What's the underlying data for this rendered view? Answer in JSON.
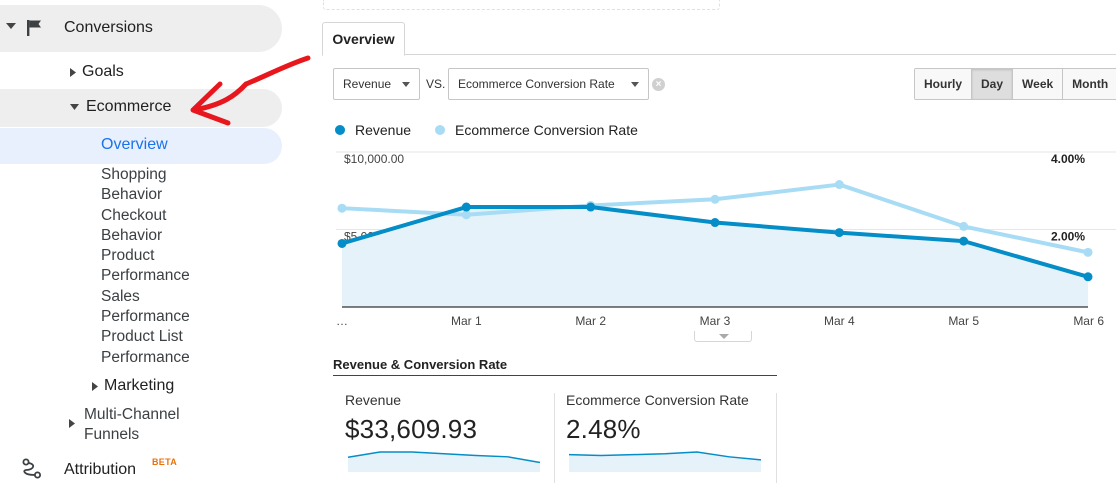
{
  "sidebar": {
    "conversions_label": "Conversions",
    "goals_label": "Goals",
    "ecommerce_label": "Ecommerce",
    "overview_label": "Overview",
    "sub_items": [
      "Shopping\nBehavior",
      "Checkout\nBehavior",
      "Product\nPerformance",
      "Sales\nPerformance",
      "Product List\nPerformance"
    ],
    "marketing_label": "Marketing",
    "multichannel_label": "Multi-Channel\nFunnels",
    "attribution_label": "Attribution",
    "attribution_badge": "BETA"
  },
  "tabs": {
    "overview": "Overview"
  },
  "controls": {
    "metric1": "Revenue",
    "vs": "VS.",
    "metric2": "Ecommerce Conversion Rate",
    "clear_icon": "close-circle-icon",
    "granularity": [
      "Hourly",
      "Day",
      "Week",
      "Month"
    ],
    "granularity_active": "Day"
  },
  "legend": {
    "revenue": "Revenue",
    "conversion_rate": "Ecommerce Conversion Rate"
  },
  "colors": {
    "revenue": "#058dc7",
    "conversion_rate": "#a8dcf5",
    "revenue_fill": "#e6f2fa",
    "annotation": "#e8171d",
    "beta": "#e8710a",
    "active_nav": "#1a73e8"
  },
  "chart_data": {
    "type": "line",
    "x": [
      "…",
      "Mar 1",
      "Mar 2",
      "Mar 3",
      "Mar 4",
      "Mar 5",
      "Mar 6"
    ],
    "left_axis_ticks": [
      "$10,000.00",
      "$5,000.00"
    ],
    "right_axis_ticks": [
      "4.00%",
      "2.00%"
    ],
    "ylim_left": [
      0,
      10000
    ],
    "ylim_right": [
      0,
      4
    ],
    "grid": true,
    "series": [
      {
        "name": "Revenue",
        "axis": "left",
        "area": true,
        "values": [
          4100,
          6450,
          6450,
          5450,
          4800,
          4250,
          1950
        ]
      },
      {
        "name": "Ecommerce Conversion Rate",
        "axis": "right",
        "area": false,
        "values": [
          2.55,
          2.38,
          2.62,
          2.78,
          3.16,
          2.08,
          1.41
        ]
      }
    ]
  },
  "summary": {
    "title": "Revenue & Conversion Rate",
    "revenue_label": "Revenue",
    "revenue_value": "$33,609.93",
    "revenue_spark": [
      2.0,
      3.2,
      3.2,
      2.8,
      2.4,
      2.1,
      0.8
    ],
    "rate_label": "Ecommerce Conversion Rate",
    "rate_value": "2.48%",
    "rate_spark": [
      2.6,
      2.4,
      2.6,
      2.8,
      3.2,
      2.1,
      1.4
    ]
  }
}
